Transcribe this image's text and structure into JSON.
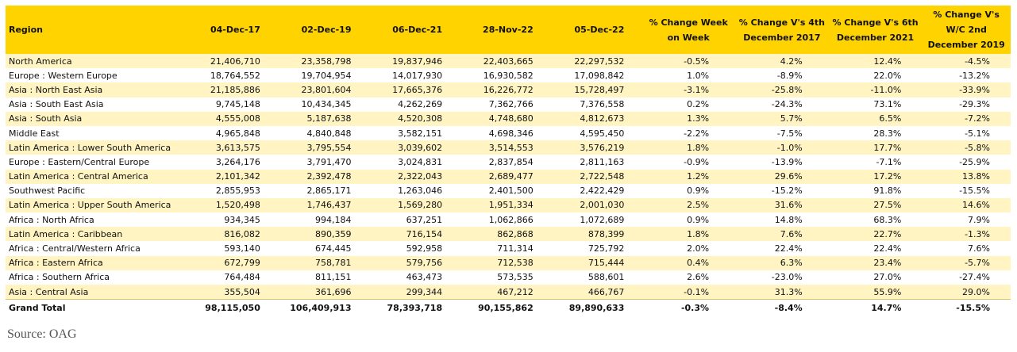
{
  "table": {
    "headers": [
      "Region",
      "04-Dec-17",
      "02-Dec-19",
      "06-Dec-21",
      "28-Nov-22",
      "05-Dec-22",
      "% Change Week on Week",
      "% Change V's 4th December 2017",
      "% Change V's 6th December 2021",
      "% Change V's W/C 2nd December 2019"
    ],
    "rows": [
      [
        "North America",
        "21,406,710",
        "23,358,798",
        "19,837,946",
        "22,403,665",
        "22,297,532",
        "-0.5%",
        "4.2%",
        "12.4%",
        "-4.5%"
      ],
      [
        "Europe : Western Europe",
        "18,764,552",
        "19,704,954",
        "14,017,930",
        "16,930,582",
        "17,098,842",
        "1.0%",
        "-8.9%",
        "22.0%",
        "-13.2%"
      ],
      [
        "Asia : North East Asia",
        "21,185,886",
        "23,801,604",
        "17,665,376",
        "16,226,772",
        "15,728,497",
        "-3.1%",
        "-25.8%",
        "-11.0%",
        "-33.9%"
      ],
      [
        "Asia : South East Asia",
        "9,745,148",
        "10,434,345",
        "4,262,269",
        "7,362,766",
        "7,376,558",
        "0.2%",
        "-24.3%",
        "73.1%",
        "-29.3%"
      ],
      [
        "Asia : South Asia",
        "4,555,008",
        "5,187,638",
        "4,520,308",
        "4,748,680",
        "4,812,673",
        "1.3%",
        "5.7%",
        "6.5%",
        "-7.2%"
      ],
      [
        "Middle East",
        "4,965,848",
        "4,840,848",
        "3,582,151",
        "4,698,346",
        "4,595,450",
        "-2.2%",
        "-7.5%",
        "28.3%",
        "-5.1%"
      ],
      [
        "Latin America : Lower South America",
        "3,613,575",
        "3,795,554",
        "3,039,602",
        "3,514,553",
        "3,576,219",
        "1.8%",
        "-1.0%",
        "17.7%",
        "-5.8%"
      ],
      [
        "Europe : Eastern/Central Europe",
        "3,264,176",
        "3,791,470",
        "3,024,831",
        "2,837,854",
        "2,811,163",
        "-0.9%",
        "-13.9%",
        "-7.1%",
        "-25.9%"
      ],
      [
        "Latin America : Central America",
        "2,101,342",
        "2,392,478",
        "2,322,043",
        "2,689,477",
        "2,722,548",
        "1.2%",
        "29.6%",
        "17.2%",
        "13.8%"
      ],
      [
        "Southwest Pacific",
        "2,855,953",
        "2,865,171",
        "1,263,046",
        "2,401,500",
        "2,422,429",
        "0.9%",
        "-15.2%",
        "91.8%",
        "-15.5%"
      ],
      [
        "Latin America : Upper South America",
        "1,520,498",
        "1,746,437",
        "1,569,280",
        "1,951,334",
        "2,001,030",
        "2.5%",
        "31.6%",
        "27.5%",
        "14.6%"
      ],
      [
        "Africa : North Africa",
        "934,345",
        "994,184",
        "637,251",
        "1,062,866",
        "1,072,689",
        "0.9%",
        "14.8%",
        "68.3%",
        "7.9%"
      ],
      [
        "Latin America : Caribbean",
        "816,082",
        "890,359",
        "716,154",
        "862,868",
        "878,399",
        "1.8%",
        "7.6%",
        "22.7%",
        "-1.3%"
      ],
      [
        "Africa : Central/Western Africa",
        "593,140",
        "674,445",
        "592,958",
        "711,314",
        "725,792",
        "2.0%",
        "22.4%",
        "22.4%",
        "7.6%"
      ],
      [
        "Africa : Eastern Africa",
        "672,799",
        "758,781",
        "579,756",
        "712,538",
        "715,444",
        "0.4%",
        "6.3%",
        "23.4%",
        "-5.7%"
      ],
      [
        "Africa : Southern Africa",
        "764,484",
        "811,151",
        "463,473",
        "573,535",
        "588,601",
        "2.6%",
        "-23.0%",
        "27.0%",
        "-27.4%"
      ],
      [
        "Asia : Central Asia",
        "355,504",
        "361,696",
        "299,344",
        "467,212",
        "466,767",
        "-0.1%",
        "31.3%",
        "55.9%",
        "29.0%"
      ]
    ],
    "total": [
      "Grand Total",
      "98,115,050",
      "106,409,913",
      "78,393,718",
      "90,155,862",
      "89,890,633",
      "-0.3%",
      "-8.4%",
      "14.7%",
      "-15.5%"
    ]
  },
  "source": "Source: OAG",
  "colors": {
    "header_bg": "#FFD300",
    "stripe_bg": "#FFF4C2"
  }
}
